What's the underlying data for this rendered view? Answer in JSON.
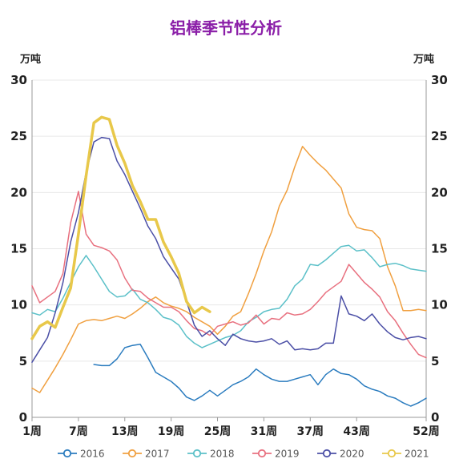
{
  "chart_data": {
    "type": "line",
    "title": "铝棒季节性分析",
    "title_color": "#8b1fa8",
    "ylabel_left": "万吨",
    "ylabel_right": "万吨",
    "ylim": [
      0,
      30
    ],
    "y_ticks": [
      "0",
      "5",
      "10",
      "15",
      "20",
      "25",
      "30"
    ],
    "x_ticks": [
      {
        "week": 1,
        "label": "1周"
      },
      {
        "week": 7,
        "label": "7周"
      },
      {
        "week": 13,
        "label": "13周"
      },
      {
        "week": 19,
        "label": "19周"
      },
      {
        "week": 25,
        "label": "25周"
      },
      {
        "week": 31,
        "label": "31周"
      },
      {
        "week": 37,
        "label": "37周"
      },
      {
        "week": 43,
        "label": "43周"
      },
      {
        "week": 52,
        "label": "52周"
      }
    ],
    "legend_position": "bottom",
    "series": [
      {
        "name": "2016",
        "color": "#2b7cbf",
        "width": 1.5,
        "points": [
          [
            9,
            4.7
          ],
          [
            10,
            4.6
          ],
          [
            11,
            4.6
          ],
          [
            12,
            5.2
          ],
          [
            13,
            6.2
          ],
          [
            14,
            6.4
          ],
          [
            15,
            6.5
          ],
          [
            16,
            5.3
          ],
          [
            17,
            4.0
          ],
          [
            18,
            3.6
          ],
          [
            19,
            3.2
          ],
          [
            20,
            2.6
          ],
          [
            21,
            1.8
          ],
          [
            22,
            1.5
          ],
          [
            23,
            1.9
          ],
          [
            24,
            2.4
          ],
          [
            25,
            1.9
          ],
          [
            26,
            2.4
          ],
          [
            27,
            2.9
          ],
          [
            28,
            3.2
          ],
          [
            29,
            3.6
          ],
          [
            30,
            4.3
          ],
          [
            31,
            3.8
          ],
          [
            32,
            3.4
          ],
          [
            33,
            3.2
          ],
          [
            34,
            3.2
          ],
          [
            35,
            3.4
          ],
          [
            36,
            3.6
          ],
          [
            37,
            3.8
          ],
          [
            38,
            2.9
          ],
          [
            39,
            3.8
          ],
          [
            40,
            4.3
          ],
          [
            41,
            3.9
          ],
          [
            42,
            3.8
          ],
          [
            43,
            3.4
          ],
          [
            44,
            2.8
          ],
          [
            45,
            2.5
          ],
          [
            46,
            2.3
          ],
          [
            47,
            1.9
          ],
          [
            48,
            1.7
          ],
          [
            49,
            1.3
          ],
          [
            50,
            1.0
          ],
          [
            51,
            1.3
          ],
          [
            52,
            1.7
          ]
        ]
      },
      {
        "name": "2017",
        "color": "#f0a040",
        "width": 1.5,
        "points": [
          [
            1,
            2.6
          ],
          [
            2,
            2.2
          ],
          [
            3,
            3.3
          ],
          [
            4,
            4.4
          ],
          [
            5,
            5.6
          ],
          [
            6,
            6.9
          ],
          [
            7,
            8.3
          ],
          [
            8,
            8.6
          ],
          [
            9,
            8.7
          ],
          [
            10,
            8.6
          ],
          [
            11,
            8.8
          ],
          [
            12,
            9.0
          ],
          [
            13,
            8.8
          ],
          [
            14,
            9.2
          ],
          [
            15,
            9.7
          ],
          [
            16,
            10.3
          ],
          [
            17,
            10.7
          ],
          [
            18,
            10.2
          ],
          [
            19,
            9.9
          ],
          [
            20,
            9.7
          ],
          [
            21,
            9.4
          ],
          [
            22,
            8.9
          ],
          [
            23,
            8.5
          ],
          [
            24,
            8.1
          ],
          [
            25,
            7.4
          ],
          [
            26,
            8.1
          ],
          [
            27,
            9.0
          ],
          [
            28,
            9.4
          ],
          [
            29,
            11.0
          ],
          [
            30,
            12.8
          ],
          [
            31,
            14.8
          ],
          [
            32,
            16.5
          ],
          [
            33,
            18.8
          ],
          [
            34,
            20.2
          ],
          [
            35,
            22.3
          ],
          [
            36,
            24.1
          ],
          [
            37,
            23.3
          ],
          [
            38,
            22.6
          ],
          [
            39,
            22.0
          ],
          [
            40,
            21.2
          ],
          [
            41,
            20.4
          ],
          [
            42,
            18.1
          ],
          [
            43,
            16.9
          ],
          [
            44,
            16.7
          ],
          [
            45,
            16.6
          ],
          [
            46,
            15.9
          ],
          [
            47,
            13.4
          ],
          [
            48,
            11.7
          ],
          [
            49,
            9.5
          ],
          [
            50,
            9.5
          ],
          [
            51,
            9.6
          ],
          [
            52,
            9.5
          ]
        ]
      },
      {
        "name": "2018",
        "color": "#5bc0c8",
        "width": 1.5,
        "points": [
          [
            1,
            9.3
          ],
          [
            2,
            9.1
          ],
          [
            3,
            9.6
          ],
          [
            4,
            9.4
          ],
          [
            5,
            10.6
          ],
          [
            6,
            12.0
          ],
          [
            7,
            13.4
          ],
          [
            8,
            14.4
          ],
          [
            9,
            13.4
          ],
          [
            10,
            12.3
          ],
          [
            11,
            11.2
          ],
          [
            12,
            10.7
          ],
          [
            13,
            10.8
          ],
          [
            14,
            11.4
          ],
          [
            15,
            10.5
          ],
          [
            16,
            10.2
          ],
          [
            17,
            9.6
          ],
          [
            18,
            8.9
          ],
          [
            19,
            8.7
          ],
          [
            20,
            8.2
          ],
          [
            21,
            7.2
          ],
          [
            22,
            6.6
          ],
          [
            23,
            6.2
          ],
          [
            24,
            6.5
          ],
          [
            25,
            6.8
          ],
          [
            26,
            7.1
          ],
          [
            27,
            7.3
          ],
          [
            28,
            7.7
          ],
          [
            29,
            8.5
          ],
          [
            30,
            8.9
          ],
          [
            31,
            9.4
          ],
          [
            32,
            9.6
          ],
          [
            33,
            9.7
          ],
          [
            34,
            10.5
          ],
          [
            35,
            11.7
          ],
          [
            36,
            12.3
          ],
          [
            37,
            13.6
          ],
          [
            38,
            13.5
          ],
          [
            39,
            14.0
          ],
          [
            40,
            14.6
          ],
          [
            41,
            15.2
          ],
          [
            42,
            15.3
          ],
          [
            43,
            14.8
          ],
          [
            44,
            14.9
          ],
          [
            45,
            14.2
          ],
          [
            46,
            13.4
          ],
          [
            47,
            13.6
          ],
          [
            48,
            13.7
          ],
          [
            49,
            13.5
          ],
          [
            50,
            13.2
          ],
          [
            51,
            13.1
          ],
          [
            52,
            13.0
          ]
        ]
      },
      {
        "name": "2019",
        "color": "#e8707f",
        "width": 1.5,
        "points": [
          [
            1,
            11.7
          ],
          [
            2,
            10.2
          ],
          [
            3,
            10.7
          ],
          [
            4,
            11.2
          ],
          [
            5,
            12.8
          ],
          [
            6,
            17.3
          ],
          [
            7,
            20.1
          ],
          [
            8,
            16.3
          ],
          [
            9,
            15.3
          ],
          [
            10,
            15.1
          ],
          [
            11,
            14.8
          ],
          [
            12,
            14.0
          ],
          [
            13,
            12.4
          ],
          [
            14,
            11.3
          ],
          [
            15,
            11.2
          ],
          [
            16,
            10.6
          ],
          [
            17,
            10.2
          ],
          [
            18,
            9.8
          ],
          [
            19,
            9.8
          ],
          [
            20,
            9.4
          ],
          [
            21,
            8.6
          ],
          [
            22,
            7.9
          ],
          [
            23,
            7.7
          ],
          [
            24,
            7.3
          ],
          [
            25,
            8.1
          ],
          [
            26,
            8.3
          ],
          [
            27,
            8.5
          ],
          [
            28,
            8.2
          ],
          [
            29,
            8.4
          ],
          [
            30,
            9.1
          ],
          [
            31,
            8.3
          ],
          [
            32,
            8.8
          ],
          [
            33,
            8.7
          ],
          [
            34,
            9.3
          ],
          [
            35,
            9.1
          ],
          [
            36,
            9.2
          ],
          [
            37,
            9.6
          ],
          [
            38,
            10.3
          ],
          [
            39,
            11.1
          ],
          [
            40,
            11.6
          ],
          [
            41,
            12.1
          ],
          [
            42,
            13.6
          ],
          [
            43,
            12.8
          ],
          [
            44,
            12.0
          ],
          [
            45,
            11.4
          ],
          [
            46,
            10.7
          ],
          [
            47,
            9.4
          ],
          [
            48,
            8.6
          ],
          [
            49,
            7.5
          ],
          [
            50,
            6.5
          ],
          [
            51,
            5.6
          ],
          [
            52,
            5.3
          ]
        ]
      },
      {
        "name": "2020",
        "color": "#4b4fa6",
        "width": 1.5,
        "points": [
          [
            1,
            4.9
          ],
          [
            2,
            6.0
          ],
          [
            3,
            7.1
          ],
          [
            4,
            9.3
          ],
          [
            5,
            12.0
          ],
          [
            6,
            15.6
          ],
          [
            7,
            18.2
          ],
          [
            8,
            21.8
          ],
          [
            9,
            24.5
          ],
          [
            10,
            24.9
          ],
          [
            11,
            24.8
          ],
          [
            12,
            22.8
          ],
          [
            13,
            21.6
          ],
          [
            14,
            20.1
          ],
          [
            15,
            18.6
          ],
          [
            16,
            17.0
          ],
          [
            17,
            15.9
          ],
          [
            18,
            14.3
          ],
          [
            19,
            13.3
          ],
          [
            20,
            12.3
          ],
          [
            21,
            10.3
          ],
          [
            22,
            8.2
          ],
          [
            23,
            7.2
          ],
          [
            24,
            7.7
          ],
          [
            25,
            7.0
          ],
          [
            26,
            6.4
          ],
          [
            27,
            7.4
          ],
          [
            28,
            7.0
          ],
          [
            29,
            6.8
          ],
          [
            30,
            6.7
          ],
          [
            31,
            6.8
          ],
          [
            32,
            7.0
          ],
          [
            33,
            6.5
          ],
          [
            34,
            6.8
          ],
          [
            35,
            6.0
          ],
          [
            36,
            6.1
          ],
          [
            37,
            6.0
          ],
          [
            38,
            6.1
          ],
          [
            39,
            6.6
          ],
          [
            40,
            6.6
          ],
          [
            41,
            10.8
          ],
          [
            42,
            9.2
          ],
          [
            43,
            9.0
          ],
          [
            44,
            8.6
          ],
          [
            45,
            9.2
          ],
          [
            46,
            8.3
          ],
          [
            47,
            7.6
          ],
          [
            48,
            7.1
          ],
          [
            49,
            6.9
          ],
          [
            50,
            7.1
          ],
          [
            51,
            7.2
          ],
          [
            52,
            7.0
          ]
        ]
      },
      {
        "name": "2021",
        "color": "#e8c84a",
        "width": 3.5,
        "points": [
          [
            1,
            7.0
          ],
          [
            2,
            8.1
          ],
          [
            3,
            8.5
          ],
          [
            4,
            8.0
          ],
          [
            5,
            9.8
          ],
          [
            6,
            11.5
          ],
          [
            7,
            16.3
          ],
          [
            8,
            21.5
          ],
          [
            9,
            26.2
          ],
          [
            10,
            26.7
          ],
          [
            11,
            26.5
          ],
          [
            12,
            24.2
          ],
          [
            13,
            22.6
          ],
          [
            14,
            20.6
          ],
          [
            15,
            19.2
          ],
          [
            16,
            17.6
          ],
          [
            17,
            17.6
          ],
          [
            18,
            15.6
          ],
          [
            19,
            14.3
          ],
          [
            20,
            12.8
          ],
          [
            21,
            10.3
          ],
          [
            22,
            9.3
          ],
          [
            23,
            9.8
          ],
          [
            24,
            9.4
          ]
        ]
      }
    ]
  }
}
